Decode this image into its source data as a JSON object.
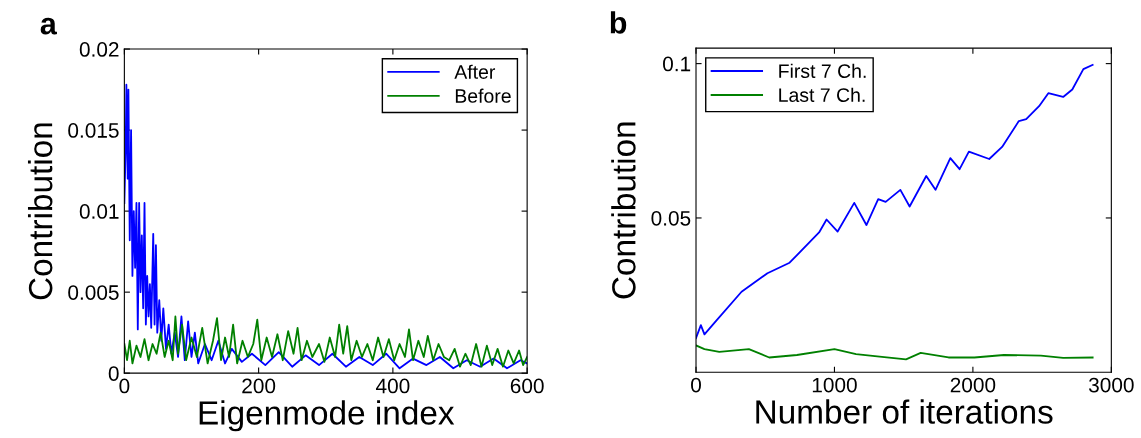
{
  "chart_data": [
    {
      "type": "line",
      "title": "a",
      "xlabel": "Eigenmode index",
      "ylabel": "Contribution",
      "xlim": [
        0,
        600
      ],
      "xticks": [
        0,
        200,
        400,
        600
      ],
      "ylim": [
        0,
        0.02
      ],
      "yticks": [
        0,
        0.005,
        0.01,
        0.015,
        0.02
      ],
      "legend": "top right",
      "grid": false,
      "series": [
        {
          "name": "After",
          "color": "#0000ff",
          "x": [
            0,
            2,
            3,
            5,
            6,
            8,
            10,
            12,
            14,
            16,
            18,
            20,
            22,
            24,
            26,
            28,
            30,
            32,
            34,
            36,
            38,
            40,
            43,
            45,
            47,
            49,
            52,
            55,
            58,
            62,
            66,
            70,
            75,
            80,
            85,
            90,
            95,
            100,
            105,
            110,
            120,
            130,
            140,
            150,
            160,
            175,
            190,
            210,
            230,
            250,
            270,
            290,
            310,
            330,
            350,
            370,
            390,
            410,
            430,
            450,
            470,
            490,
            510,
            530,
            550,
            570,
            590,
            600
          ],
          "values": [
            0.0105,
            0.014,
            0.0178,
            0.012,
            0.0175,
            0.0082,
            0.015,
            0.006,
            0.01,
            0.0065,
            0.0105,
            0.0027,
            0.0105,
            0.005,
            0.0085,
            0.004,
            0.0105,
            0.003,
            0.006,
            0.0035,
            0.0055,
            0.0028,
            0.0086,
            0.003,
            0.0079,
            0.0025,
            0.0045,
            0.002,
            0.004,
            0.0015,
            0.003,
            0.0012,
            0.0025,
            0.001,
            0.0035,
            0.0008,
            0.0032,
            0.001,
            0.0025,
            0.0006,
            0.0018,
            0.0008,
            0.002,
            0.0006,
            0.0015,
            0.0007,
            0.0012,
            0.0005,
            0.0013,
            0.0004,
            0.0011,
            0.0005,
            0.0012,
            0.0004,
            0.001,
            0.0005,
            0.0012,
            0.0003,
            0.0009,
            0.0005,
            0.001,
            0.0003,
            0.0008,
            0.0004,
            0.0009,
            0.0003,
            0.0008,
            0.0006
          ]
        },
        {
          "name": "Before",
          "color": "#008000",
          "x": [
            0,
            4,
            8,
            12,
            18,
            24,
            30,
            36,
            42,
            48,
            54,
            60,
            66,
            72,
            76,
            80,
            86,
            92,
            100,
            108,
            116,
            124,
            132,
            138,
            144,
            150,
            156,
            162,
            168,
            176,
            184,
            192,
            198,
            204,
            212,
            220,
            228,
            236,
            244,
            252,
            258,
            264,
            272,
            280,
            290,
            298,
            306,
            314,
            320,
            326,
            332,
            338,
            346,
            354,
            362,
            370,
            378,
            386,
            394,
            402,
            410,
            418,
            424,
            430,
            438,
            446,
            452,
            460,
            468,
            476,
            484,
            492,
            500,
            508,
            516,
            524,
            532,
            540,
            548,
            556,
            564,
            572,
            580,
            588,
            594,
            600
          ],
          "values": [
            0.0018,
            0.0008,
            0.002,
            0.0006,
            0.0017,
            0.001,
            0.0021,
            0.0008,
            0.0018,
            0.0012,
            0.0025,
            0.001,
            0.002,
            0.0008,
            0.0035,
            0.0012,
            0.003,
            0.0008,
            0.0022,
            0.001,
            0.0028,
            0.0006,
            0.002,
            0.0034,
            0.0008,
            0.0022,
            0.001,
            0.003,
            0.0006,
            0.002,
            0.001,
            0.0018,
            0.0033,
            0.0008,
            0.0022,
            0.001,
            0.0024,
            0.0008,
            0.0026,
            0.0012,
            0.0028,
            0.0008,
            0.002,
            0.001,
            0.0018,
            0.0007,
            0.0022,
            0.001,
            0.003,
            0.0012,
            0.0029,
            0.0008,
            0.002,
            0.001,
            0.0018,
            0.0008,
            0.0022,
            0.001,
            0.0021,
            0.0008,
            0.0018,
            0.001,
            0.0027,
            0.0008,
            0.002,
            0.001,
            0.0023,
            0.0008,
            0.0018,
            0.001,
            0.0008,
            0.0015,
            0.0004,
            0.0012,
            0.0005,
            0.0018,
            0.0004,
            0.0017,
            0.0005,
            0.0015,
            0.0004,
            0.0014,
            0.0006,
            0.0014,
            0.0005,
            0.001
          ]
        }
      ]
    },
    {
      "type": "line",
      "title": "b",
      "xlabel": "Number of iterations",
      "ylabel": "Contribution",
      "xlim": [
        0,
        3000
      ],
      "xticks": [
        0,
        1000,
        2000,
        3000
      ],
      "ylim": [
        0,
        0.105
      ],
      "yticks": [
        0.05,
        0.1
      ],
      "legend": "top left",
      "grid": false,
      "series": [
        {
          "name": "First 7 Ch.",
          "color": "#0000ff",
          "x": [
            0,
            35,
            61,
            142,
            329,
            516,
            676,
            889,
            943,
            1023,
            1143,
            1231,
            1316,
            1370,
            1476,
            1543,
            1663,
            1730,
            1837,
            1904,
            1971,
            2118,
            2211,
            2332,
            2385,
            2478,
            2545,
            2652,
            2718,
            2798,
            2865
          ],
          "values": [
            0.0111,
            0.0153,
            0.0123,
            0.0165,
            0.0261,
            0.0321,
            0.0355,
            0.0453,
            0.0495,
            0.0456,
            0.0549,
            0.0477,
            0.0561,
            0.0552,
            0.0591,
            0.0537,
            0.0636,
            0.0591,
            0.0694,
            0.0658,
            0.0715,
            0.0691,
            0.073,
            0.0814,
            0.082,
            0.0862,
            0.0904,
            0.0892,
            0.0916,
            0.0982,
            0.0996
          ]
        },
        {
          "name": "Last 7 Ch.",
          "color": "#008000",
          "x": [
            0,
            61,
            168,
            382,
            529,
            729,
            1000,
            1156,
            1343,
            1517,
            1623,
            1824,
            2011,
            2224,
            2491,
            2652,
            2865
          ],
          "values": [
            0.0087,
            0.0075,
            0.0066,
            0.0075,
            0.0048,
            0.0056,
            0.0075,
            0.0059,
            0.005,
            0.0042,
            0.0063,
            0.0048,
            0.0048,
            0.0056,
            0.0054,
            0.0047,
            0.0048
          ]
        }
      ]
    }
  ]
}
